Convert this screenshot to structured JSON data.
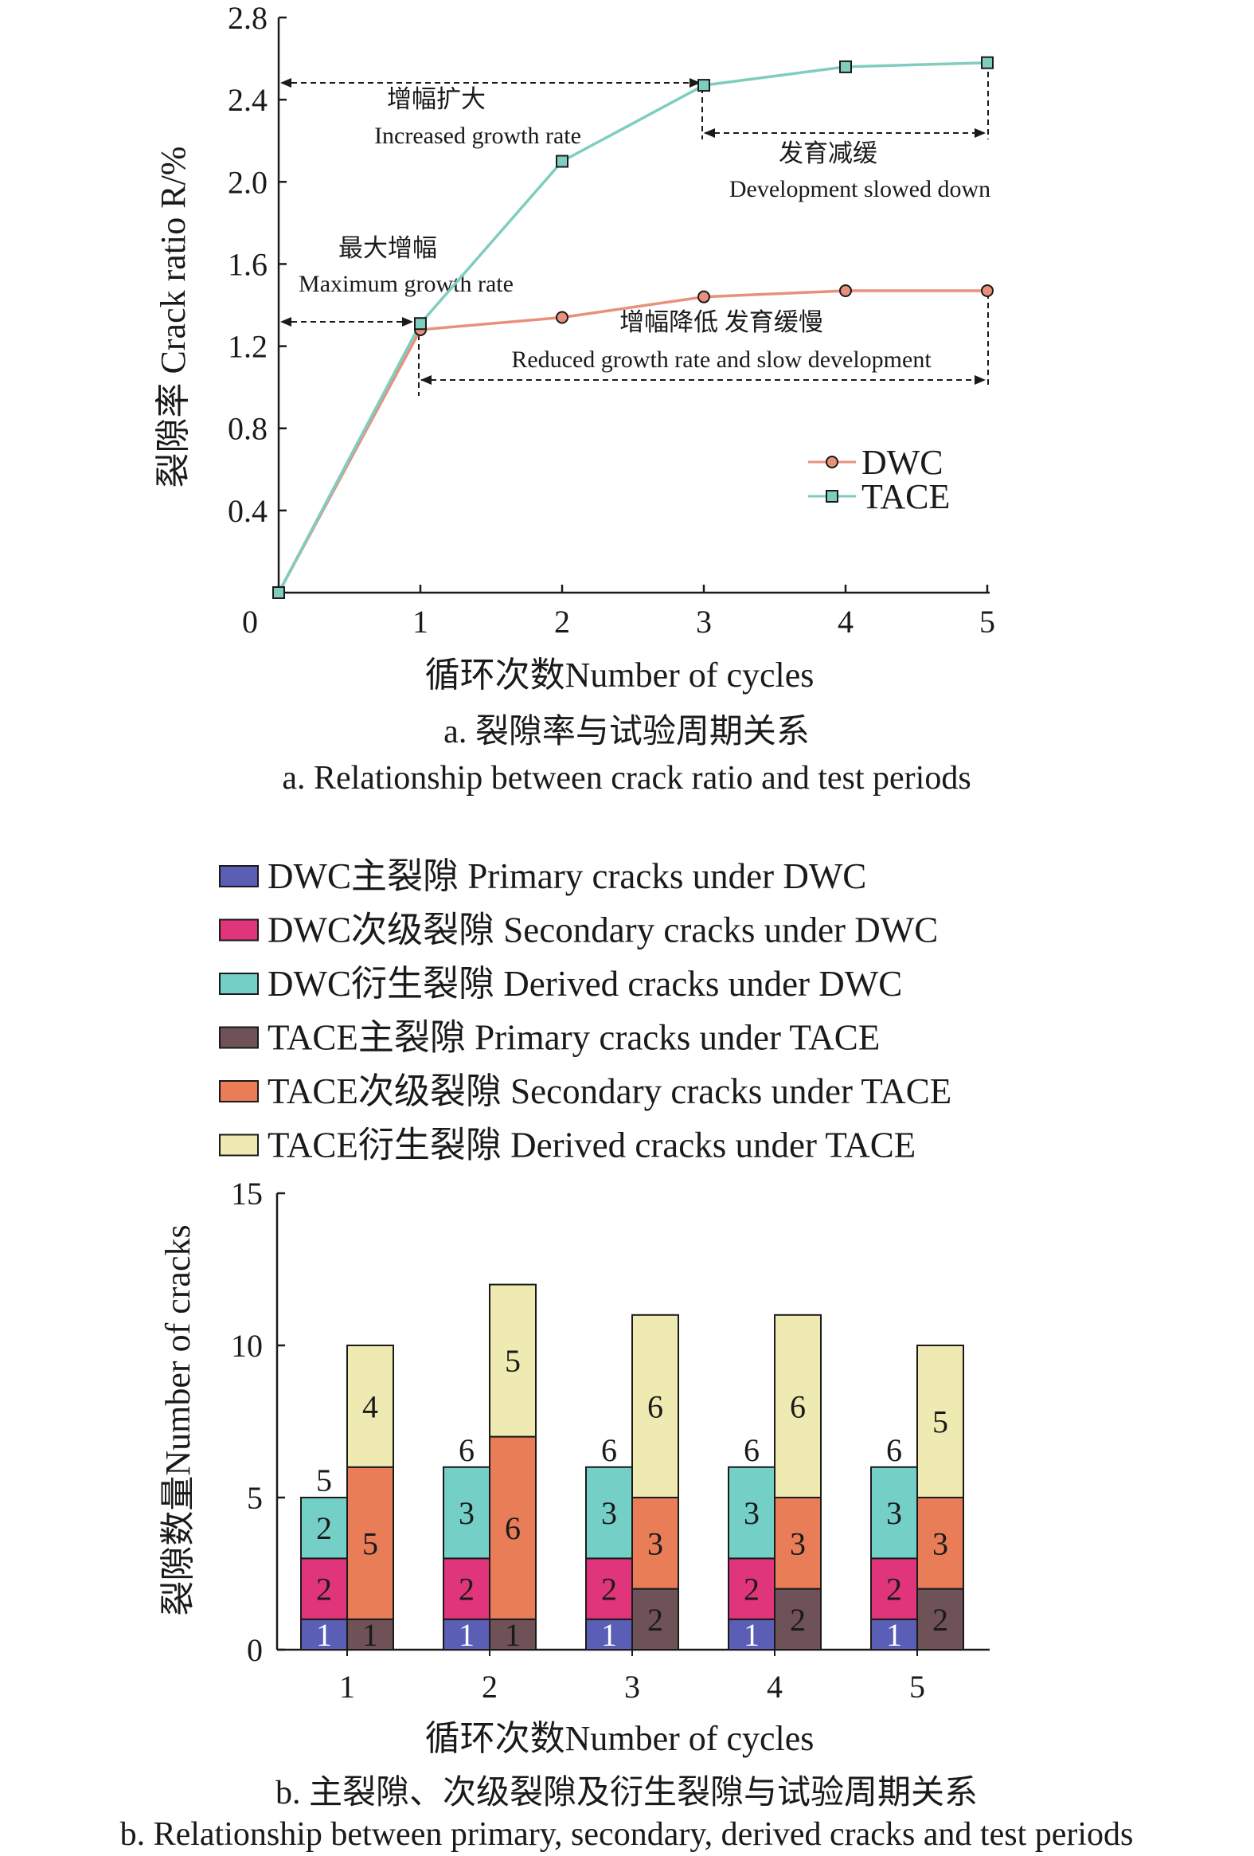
{
  "chart_data": [
    {
      "type": "line",
      "ylabel": "裂隙率 Crack ratio R/%",
      "xlabel": "循环次数Number of cycles",
      "caption_cn": "a. 裂隙率与试验周期关系",
      "caption_en": "a. Relationship between crack ratio and test periods",
      "x": [
        0,
        1,
        2,
        3,
        4,
        5
      ],
      "xlim": [
        0,
        5
      ],
      "ylim": [
        0,
        2.8
      ],
      "yticks": [
        "0.4",
        "0.8",
        "1.2",
        "1.6",
        "2.0",
        "2.4",
        "2.8"
      ],
      "xticks": [
        "0",
        "1",
        "2",
        "3",
        "4",
        "5"
      ],
      "series": [
        {
          "name": "DWC",
          "values": [
            0,
            1.28,
            1.34,
            1.44,
            1.47,
            1.47
          ],
          "color": "#e8907c",
          "marker": "circle"
        },
        {
          "name": "TACE",
          "values": [
            0,
            1.31,
            2.1,
            2.47,
            2.56,
            2.58
          ],
          "color": "#7fcdbf",
          "marker": "square"
        }
      ],
      "annotations": [
        {
          "cn": "增幅扩大",
          "en": "Increased growth rate"
        },
        {
          "cn": "发育减缓",
          "en": "Development slowed down"
        },
        {
          "cn": "最大增幅",
          "en": "Maximum growth rate"
        },
        {
          "cn": "增幅降低 发育缓慢",
          "en": "Reduced growth rate and slow development"
        }
      ]
    },
    {
      "type": "bar",
      "stacked": true,
      "ylabel": "裂隙数量Number of cracks",
      "xlabel": "循环次数Number of cycles",
      "caption_cn": "b. 主裂隙、次级裂隙及衍生裂隙与试验周期关系",
      "caption_en": "b. Relationship between primary, secondary, derived cracks and test periods",
      "categories": [
        "1",
        "2",
        "3",
        "4",
        "5"
      ],
      "ylim": [
        0,
        15
      ],
      "yticks": [
        "0",
        "5",
        "10",
        "15"
      ],
      "series": [
        {
          "name": "DWC主裂隙 Primary cracks under DWC",
          "group": "DWC",
          "values": [
            1,
            1,
            1,
            1,
            1
          ],
          "color": "#5a5fb5"
        },
        {
          "name": "DWC次级裂隙 Secondary cracks under DWC",
          "group": "DWC",
          "values": [
            2,
            2,
            2,
            2,
            2
          ],
          "color": "#e0357a"
        },
        {
          "name": "DWC衍生裂隙 Derived cracks under DWC",
          "group": "DWC",
          "values": [
            2,
            3,
            3,
            3,
            3
          ],
          "color": "#74d0c6"
        },
        {
          "name": "TACE主裂隙 Primary cracks under TACE",
          "group": "TACE",
          "values": [
            1,
            1,
            2,
            2,
            2
          ],
          "color": "#6e5258"
        },
        {
          "name": "TACE次级裂隙 Secondary cracks under TACE",
          "group": "TACE",
          "values": [
            5,
            6,
            3,
            3,
            3
          ],
          "color": "#e87d58"
        },
        {
          "name": "TACE衍生裂隙 Derived cracks under TACE",
          "group": "TACE",
          "values": [
            4,
            5,
            6,
            6,
            5
          ],
          "color": "#eeeab2"
        }
      ],
      "totals": {
        "DWC": [
          5,
          6,
          6,
          6,
          6
        ],
        "TACE": [
          10,
          12,
          11,
          11,
          10
        ]
      }
    }
  ]
}
